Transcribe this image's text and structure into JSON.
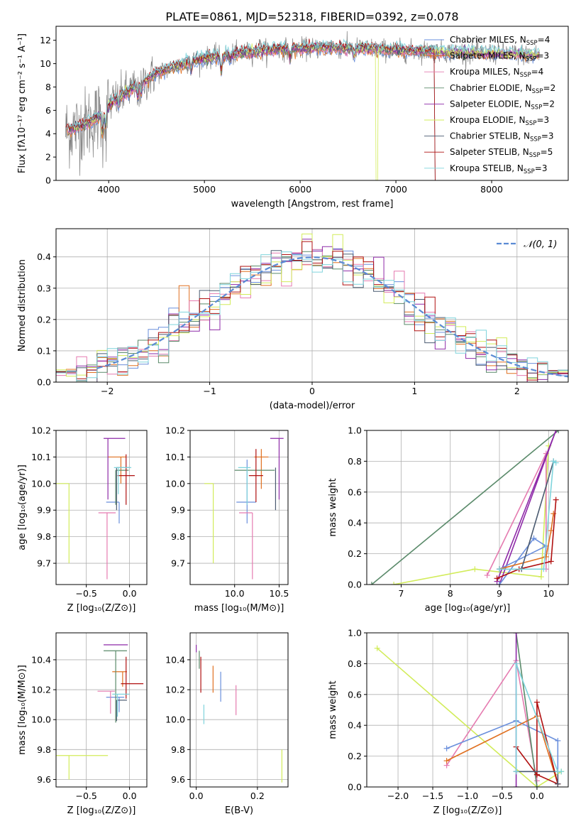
{
  "title": "PLATE=0861, MJD=52318, FIBERID=0392, z=0.078",
  "colors": {
    "Chabrier MILES": "#6a8fdc",
    "Salpeter MILES": "#e07020",
    "Kroupa MILES": "#e57bb0",
    "Chabrier ELODIE": "#5a8a6a",
    "Salpeter ELODIE": "#8e2aa8",
    "Kroupa ELODIE": "#d2ec5a",
    "Chabrier STELIB": "#4a5a70",
    "Salpeter STELIB": "#b01010",
    "Kroupa STELIB": "#7fd4dc",
    "data": "#808080",
    "normal": "#5b8bd4"
  },
  "chart_data": [
    {
      "type": "line",
      "id": "spectrum",
      "xlabel": "wavelength [Angstrom, rest frame]",
      "ylabel": "Flux [fλ10⁻¹⁷ erg cm⁻² s⁻¹ A⁻¹]",
      "xlim": [
        3450,
        8800
      ],
      "ylim": [
        0,
        13.2
      ],
      "xticks": [
        4000,
        5000,
        6000,
        7000,
        8000
      ],
      "yticks": [
        0,
        2,
        4,
        6,
        8,
        10,
        12
      ],
      "legend": "right",
      "legend_entries": [
        {
          "label": "Chabrier MILES, N",
          "sub": "SSP",
          "tail": "=4",
          "model": "Chabrier MILES"
        },
        {
          "label": "Salpeter MILES, N",
          "sub": "SSP",
          "tail": "=3",
          "model": "Salpeter MILES"
        },
        {
          "label": "Kroupa MILES, N",
          "sub": "SSP",
          "tail": "=4",
          "model": "Kroupa MILES"
        },
        {
          "label": "Chabrier ELODIE, N",
          "sub": "SSP",
          "tail": "=2",
          "model": "Chabrier ELODIE"
        },
        {
          "label": "Salpeter ELODIE, N",
          "sub": "SSP",
          "tail": "=2",
          "model": "Salpeter ELODIE"
        },
        {
          "label": "Kroupa ELODIE, N",
          "sub": "SSP",
          "tail": "=3",
          "model": "Kroupa ELODIE"
        },
        {
          "label": "Chabrier STELIB, N",
          "sub": "SSP",
          "tail": "=3",
          "model": "Chabrier STELIB"
        },
        {
          "label": "Salpeter STELIB, N",
          "sub": "SSP",
          "tail": "=5",
          "model": "Salpeter STELIB"
        },
        {
          "label": "Kroupa STELIB, N",
          "sub": "SSP",
          "tail": "=3",
          "model": "Kroupa STELIB"
        }
      ],
      "continuum_x": [
        3550,
        3700,
        3850,
        3950,
        4050,
        4200,
        4350,
        4500,
        4700,
        4900,
        5100,
        5300,
        5500,
        5700,
        5900,
        6100,
        6300,
        6500,
        6700,
        6900,
        7100,
        7300,
        7500,
        7700,
        7900,
        8100,
        8300,
        8500
      ],
      "continuum_y": [
        4.2,
        4.6,
        5.2,
        5.8,
        6.9,
        7.6,
        8.3,
        9.2,
        9.8,
        10.3,
        10.6,
        10.8,
        11.0,
        11.2,
        11.3,
        11.3,
        11.4,
        11.3,
        11.3,
        11.2,
        11.1,
        11.1,
        11.0,
        11.0,
        10.9,
        10.9,
        10.8,
        10.8
      ]
    },
    {
      "type": "histogram",
      "id": "residuals",
      "xlabel": "(data-model)/error",
      "ylabel": "Normed distribution",
      "xlim": [
        -2.5,
        2.5
      ],
      "ylim": [
        0,
        0.49
      ],
      "xticks": [
        -2,
        -1,
        0,
        1,
        2
      ],
      "yticks": [
        0,
        0.1,
        0.2,
        0.3,
        0.4
      ],
      "legend": "top-right",
      "normal_label": "𝒩(0, 1)",
      "bin_width": 0.1
    },
    {
      "type": "scatter",
      "id": "age_vs_Z",
      "xlabel": "Z [log₁₀(Z/Z⊙)]",
      "ylabel": "age  [log₁₀(age/yr)]",
      "xlim": [
        -0.85,
        0.2
      ],
      "ylim": [
        9.62,
        10.2
      ],
      "xticks": [
        -0.5,
        0.0
      ],
      "yticks": [
        9.7,
        9.8,
        9.9,
        10.0,
        10.1,
        10.2
      ],
      "points": [
        {
          "model": "Chabrier MILES",
          "x": -0.12,
          "y": 9.93,
          "xerr": [
            0.15,
            0.0
          ],
          "yerr": [
            0.08,
            0.0
          ]
        },
        {
          "model": "Salpeter MILES",
          "x": -0.1,
          "y": 10.1,
          "xerr": [
            0.15,
            0.06
          ],
          "yerr": [
            0.1,
            0.0
          ]
        },
        {
          "model": "Kroupa MILES",
          "x": -0.26,
          "y": 9.89,
          "xerr": [
            0.1,
            0.1
          ],
          "yerr": [
            0.25,
            0.0
          ]
        },
        {
          "model": "Chabrier ELODIE",
          "x": -0.16,
          "y": 10.05,
          "xerr": [
            0.0,
            0.15
          ],
          "yerr": [
            0.13,
            0.0
          ]
        },
        {
          "model": "Salpeter ELODIE",
          "x": -0.25,
          "y": 10.17,
          "xerr": [
            0.05,
            0.2
          ],
          "yerr": [
            0.23,
            0.0
          ]
        },
        {
          "model": "Kroupa ELODIE",
          "x": -0.7,
          "y": 10.0,
          "xerr": [
            0.3,
            0.0
          ],
          "yerr": [
            0.3,
            0.0
          ]
        },
        {
          "model": "Chabrier STELIB",
          "x": -0.15,
          "y": 10.06,
          "xerr": [
            0.0,
            0.15
          ],
          "yerr": [
            0.16,
            0.0
          ]
        },
        {
          "model": "Salpeter STELIB",
          "x": -0.04,
          "y": 10.03,
          "xerr": [
            0.1,
            0.1
          ],
          "yerr": [
            0.11,
            0.08
          ]
        },
        {
          "model": "Kroupa STELIB",
          "x": -0.13,
          "y": 10.06,
          "xerr": [
            0.05,
            0.15
          ],
          "yerr": [
            0.1,
            0.0
          ]
        }
      ]
    },
    {
      "type": "scatter",
      "id": "age_vs_mass",
      "xlabel": "mass [log₁₀(M/M⊙)]",
      "ylabel": "",
      "xlim": [
        9.5,
        10.6
      ],
      "ylim": [
        9.62,
        10.2
      ],
      "xticks": [
        10.0,
        10.5
      ],
      "yticks": [
        9.7,
        9.8,
        9.9,
        10.0,
        10.1,
        10.2
      ],
      "points": [
        {
          "model": "Chabrier MILES",
          "x": 10.14,
          "y": 9.93,
          "xerr": [
            0.12,
            0.1
          ],
          "yerr": [
            0.08,
            0.16
          ]
        },
        {
          "model": "Salpeter MILES",
          "x": 10.3,
          "y": 10.1,
          "xerr": [
            0.08,
            0.08
          ],
          "yerr": [
            0.12,
            0.03
          ]
        },
        {
          "model": "Kroupa MILES",
          "x": 10.2,
          "y": 9.89,
          "xerr": [
            0.15,
            0.0
          ],
          "yerr": [
            0.25,
            0.0
          ]
        },
        {
          "model": "Chabrier ELODIE",
          "x": 10.0,
          "y": 10.05,
          "xerr": [
            0.0,
            0.45
          ],
          "yerr": [
            0.0,
            0.0
          ]
        },
        {
          "model": "Salpeter ELODIE",
          "x": 10.5,
          "y": 10.17,
          "xerr": [
            0.1,
            0.05
          ],
          "yerr": [
            0.23,
            0.0
          ]
        },
        {
          "model": "Kroupa ELODIE",
          "x": 9.76,
          "y": 10.0,
          "xerr": [
            0.1,
            0.0
          ],
          "yerr": [
            0.3,
            0.0
          ]
        },
        {
          "model": "Chabrier STELIB",
          "x": 10.46,
          "y": 10.06,
          "xerr": [
            0.0,
            0.0
          ],
          "yerr": [
            0.16,
            0.0
          ]
        },
        {
          "model": "Salpeter STELIB",
          "x": 10.24,
          "y": 10.03,
          "xerr": [
            0.08,
            0.08
          ],
          "yerr": [
            0.1,
            0.1
          ]
        },
        {
          "model": "Kroupa STELIB",
          "x": 10.14,
          "y": 10.06,
          "xerr": [
            0.1,
            0.04
          ],
          "yerr": [
            0.14,
            0.0
          ]
        }
      ]
    },
    {
      "type": "line",
      "id": "weight_vs_age",
      "xlabel": "age  [log₁₀(age/yr)]",
      "ylabel": "mass weight",
      "xlim": [
        6.3,
        10.4
      ],
      "ylim": [
        0,
        1.0
      ],
      "xticks": [
        7,
        8,
        9,
        10
      ],
      "yticks": [
        0.0,
        0.2,
        0.4,
        0.6,
        0.8,
        1.0
      ],
      "series": [
        {
          "model": "Chabrier ELODIE",
          "x": [
            6.4,
            10.2
          ],
          "y": [
            0.0,
            1.0
          ]
        },
        {
          "model": "Kroupa ELODIE",
          "x": [
            6.85,
            8.5,
            9.85,
            10.0
          ],
          "y": [
            0.0,
            0.1,
            0.05,
            0.9
          ]
        },
        {
          "model": "Kroupa MILES",
          "x": [
            8.75,
            9.95,
            9.95
          ],
          "y": [
            0.06,
            0.85,
            0.1
          ]
        },
        {
          "model": "Salpeter ELODIE",
          "x": [
            8.95,
            10.15,
            9.0
          ],
          "y": [
            0.02,
            1.0,
            0.0
          ]
        },
        {
          "model": "Chabrier MILES",
          "x": [
            9.0,
            9.7,
            9.95,
            9.0
          ],
          "y": [
            0.0,
            0.3,
            0.25,
            0.1
          ]
        },
        {
          "model": "Salpeter MILES",
          "x": [
            9.0,
            9.95,
            10.05,
            10.1
          ],
          "y": [
            0.1,
            0.18,
            0.35,
            0.46
          ]
        },
        {
          "model": "Salpeter STELIB",
          "x": [
            8.95,
            9.4,
            10.05,
            10.15
          ],
          "y": [
            0.04,
            0.1,
            0.15,
            0.55
          ]
        },
        {
          "model": "Chabrier STELIB",
          "x": [
            9.0,
            9.45,
            10.1
          ],
          "y": [
            0.1,
            0.1,
            0.8
          ]
        },
        {
          "model": "Kroupa STELIB",
          "x": [
            9.0,
            9.9,
            10.1,
            10.15
          ],
          "y": [
            0.1,
            0.1,
            0.8,
            0.79
          ]
        }
      ]
    },
    {
      "type": "scatter",
      "id": "mass_vs_Z",
      "xlabel": "Z [log₁₀(Z/Z⊙)]",
      "ylabel": "mass [log₁₀(M/M⊙)]",
      "xlim": [
        -0.85,
        0.2
      ],
      "ylim": [
        9.55,
        10.58
      ],
      "xticks": [
        -0.5,
        0.0
      ],
      "yticks": [
        9.6,
        9.8,
        10.0,
        10.2,
        10.4
      ],
      "points": [
        {
          "model": "Chabrier MILES",
          "x": -0.12,
          "y": 10.15,
          "xerr": [
            0.15,
            0.06
          ],
          "yerr": [
            0.1,
            0.0
          ]
        },
        {
          "model": "Salpeter MILES",
          "x": -0.08,
          "y": 10.32,
          "xerr": [
            0.12,
            0.05
          ],
          "yerr": [
            0.1,
            0.0
          ]
        },
        {
          "model": "Kroupa MILES",
          "x": -0.22,
          "y": 10.19,
          "xerr": [
            0.15,
            0.05
          ],
          "yerr": [
            0.15,
            0.0
          ]
        },
        {
          "model": "Chabrier ELODIE",
          "x": -0.16,
          "y": 10.46,
          "xerr": [
            0.14,
            0.13
          ],
          "yerr": [
            0.48,
            0.0
          ]
        },
        {
          "model": "Salpeter ELODIE",
          "x": -0.26,
          "y": 10.5,
          "xerr": [
            0.04,
            0.24
          ],
          "yerr": [
            0.0,
            0.0
          ]
        },
        {
          "model": "Kroupa ELODIE",
          "x": -0.7,
          "y": 9.76,
          "xerr": [
            0.15,
            0.45
          ],
          "yerr": [
            0.16,
            0.0
          ]
        },
        {
          "model": "Chabrier STELIB",
          "x": -0.15,
          "y": 10.13,
          "xerr": [
            0.0,
            0.12
          ],
          "yerr": [
            0.14,
            0.0
          ]
        },
        {
          "model": "Salpeter STELIB",
          "x": -0.04,
          "y": 10.24,
          "xerr": [
            0.06,
            0.2
          ],
          "yerr": [
            0.1,
            0.18
          ]
        },
        {
          "model": "Kroupa STELIB",
          "x": -0.14,
          "y": 10.17,
          "xerr": [
            0.06,
            0.14
          ],
          "yerr": [
            0.15,
            0.0
          ]
        }
      ]
    },
    {
      "type": "scatter",
      "id": "mass_vs_ebv",
      "xlabel": "E(B-V)",
      "ylabel": "",
      "xlim": [
        -0.02,
        0.3
      ],
      "ylim": [
        9.55,
        10.58
      ],
      "xticks": [
        0.0,
        0.2
      ],
      "yticks": [
        9.6,
        9.8,
        10.0,
        10.2,
        10.4
      ],
      "points": [
        {
          "model": "Salpeter ELODIE",
          "x": 0.0,
          "y": 10.5,
          "yerr": [
            0.05,
            0.0
          ]
        },
        {
          "model": "Chabrier ELODIE",
          "x": 0.01,
          "y": 10.46,
          "yerr": [
            0.12,
            0.0
          ]
        },
        {
          "model": "Salpeter STELIB",
          "x": 0.015,
          "y": 10.3,
          "yerr": [
            0.12,
            0.12
          ]
        },
        {
          "model": "Kroupa STELIB",
          "x": 0.025,
          "y": 10.1,
          "yerr": [
            0.13,
            0.0
          ]
        },
        {
          "model": "Salpeter MILES",
          "x": 0.055,
          "y": 10.28,
          "yerr": [
            0.1,
            0.08
          ]
        },
        {
          "model": "Chabrier MILES",
          "x": 0.08,
          "y": 10.22,
          "yerr": [
            0.1,
            0.1
          ]
        },
        {
          "model": "Kroupa MILES",
          "x": 0.13,
          "y": 10.13,
          "yerr": [
            0.1,
            0.1
          ]
        },
        {
          "model": "Kroupa ELODIE",
          "x": 0.28,
          "y": 9.7,
          "yerr": [
            0.12,
            0.1
          ]
        }
      ]
    },
    {
      "type": "line",
      "id": "weight_vs_Z",
      "xlabel": "Z [log₁₀(Z/Z⊙)]",
      "ylabel": "mass weight",
      "xlim": [
        -2.45,
        0.45
      ],
      "ylim": [
        0,
        1.0
      ],
      "xticks": [
        -2.0,
        -1.5,
        -1.0,
        -0.5,
        0.0
      ],
      "yticks": [
        0.0,
        0.2,
        0.4,
        0.6,
        0.8,
        1.0
      ],
      "series": [
        {
          "model": "Kroupa ELODIE",
          "x": [
            -2.3,
            0.0,
            0.35
          ],
          "y": [
            0.9,
            0.0,
            0.1
          ]
        },
        {
          "model": "Kroupa MILES",
          "x": [
            -1.3,
            -0.3,
            0.0
          ],
          "y": [
            0.14,
            0.82,
            0.04
          ]
        },
        {
          "model": "Chabrier MILES",
          "x": [
            -1.3,
            -0.3,
            0.3,
            0.3
          ],
          "y": [
            0.25,
            0.43,
            0.3,
            0.02
          ]
        },
        {
          "model": "Salpeter MILES",
          "x": [
            -1.3,
            0.0,
            0.3
          ],
          "y": [
            0.17,
            0.46,
            0.02
          ]
        },
        {
          "model": "Chabrier ELODIE",
          "x": [
            -0.3,
            0.0
          ],
          "y": [
            1.0,
            0.0
          ]
        },
        {
          "model": "Salpeter ELODIE",
          "x": [
            -0.3,
            -0.3
          ],
          "y": [
            0.0,
            1.0
          ]
        },
        {
          "model": "Salpeter STELIB",
          "x": [
            -0.3,
            0.0,
            0.0,
            0.3,
            0.0
          ],
          "y": [
            0.26,
            0.08,
            0.55,
            0.02,
            0.08
          ]
        },
        {
          "model": "Chabrier STELIB",
          "x": [
            -0.3,
            0.3,
            0.3
          ],
          "y": [
            0.1,
            0.1,
            0.02
          ]
        },
        {
          "model": "Kroupa STELIB",
          "x": [
            -0.3,
            -0.3,
            0.3,
            0.35
          ],
          "y": [
            0.1,
            0.8,
            0.1,
            0.1
          ]
        }
      ]
    }
  ]
}
